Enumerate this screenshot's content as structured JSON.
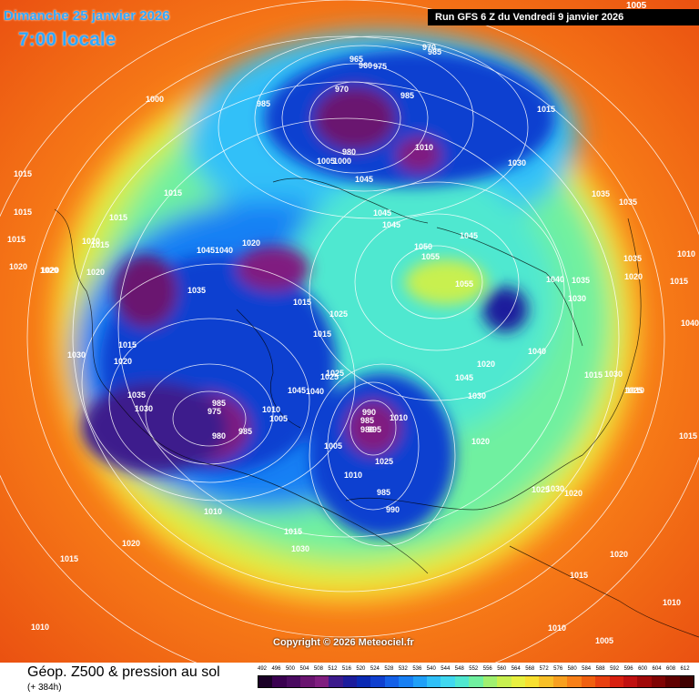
{
  "header": {
    "date_text": "Dimanche 25 janvier 2026",
    "time_text": "7:00 locale",
    "run_text": "Run GFS 6 Z du Vendredi 9 janvier 2026",
    "top_value": "1005"
  },
  "copyright": "Copyright © 2026 Meteociel.fr",
  "footer": {
    "title": "Géop. Z500 & pression au sol",
    "subtitle": "(+ 384h)"
  },
  "legend": {
    "labels": [
      "492",
      "496",
      "500",
      "504",
      "508",
      "512",
      "516",
      "520",
      "524",
      "528",
      "532",
      "536",
      "540",
      "544",
      "548",
      "552",
      "556",
      "560",
      "564",
      "568",
      "572",
      "576",
      "580",
      "584",
      "588",
      "592",
      "596",
      "600",
      "604",
      "608",
      "612"
    ],
    "colors": [
      "#1a0026",
      "#3a0050",
      "#4a0a60",
      "#6a1470",
      "#801e80",
      "#3c1a8c",
      "#1c1c9c",
      "#0a2ab4",
      "#1040d0",
      "#1460e8",
      "#1880f4",
      "#20a0f8",
      "#30c0f8",
      "#40d8f0",
      "#50e8d0",
      "#70f0a0",
      "#a0f070",
      "#c8f050",
      "#e8f040",
      "#f8e030",
      "#f8c028",
      "#f8a020",
      "#f88018",
      "#f06010",
      "#e84010",
      "#d82010",
      "#c01010",
      "#a00808",
      "#800404",
      "#600000",
      "#400000"
    ]
  },
  "map": {
    "isobar_labels": [
      "1015",
      "1015",
      "1015",
      "1020",
      "1020",
      "1000",
      "985",
      "965",
      "960",
      "970",
      "975",
      "985",
      "970",
      "985",
      "980",
      "1010",
      "1005",
      "1000",
      "1015",
      "1045",
      "1045",
      "1045",
      "1050",
      "1055",
      "1055",
      "1045",
      "1030",
      "1035",
      "1035",
      "1010",
      "1015",
      "1020",
      "1015",
      "1015",
      "1015",
      "1020",
      "1020",
      "1020",
      "1030",
      "1015",
      "1020",
      "1035",
      "1030",
      "1045",
      "1040",
      "1035",
      "1020",
      "1015",
      "1025",
      "1015",
      "1025",
      "985",
      "975",
      "980",
      "985",
      "1010",
      "1005",
      "1045",
      "1040",
      "1025",
      "990",
      "985",
      "995",
      "980",
      "1010",
      "1005",
      "985",
      "990",
      "1010",
      "1025",
      "1030",
      "1015",
      "1010",
      "1040",
      "1035",
      "1030",
      "1020",
      "1045",
      "1040",
      "1035",
      "1030",
      "1025",
      "1020",
      "1025",
      "1030",
      "1020",
      "1020",
      "1015",
      "1010",
      "1005",
      "1015",
      "1010",
      "1040",
      "1010",
      "1015",
      "1015",
      "1030",
      "1020",
      "1010"
    ]
  }
}
